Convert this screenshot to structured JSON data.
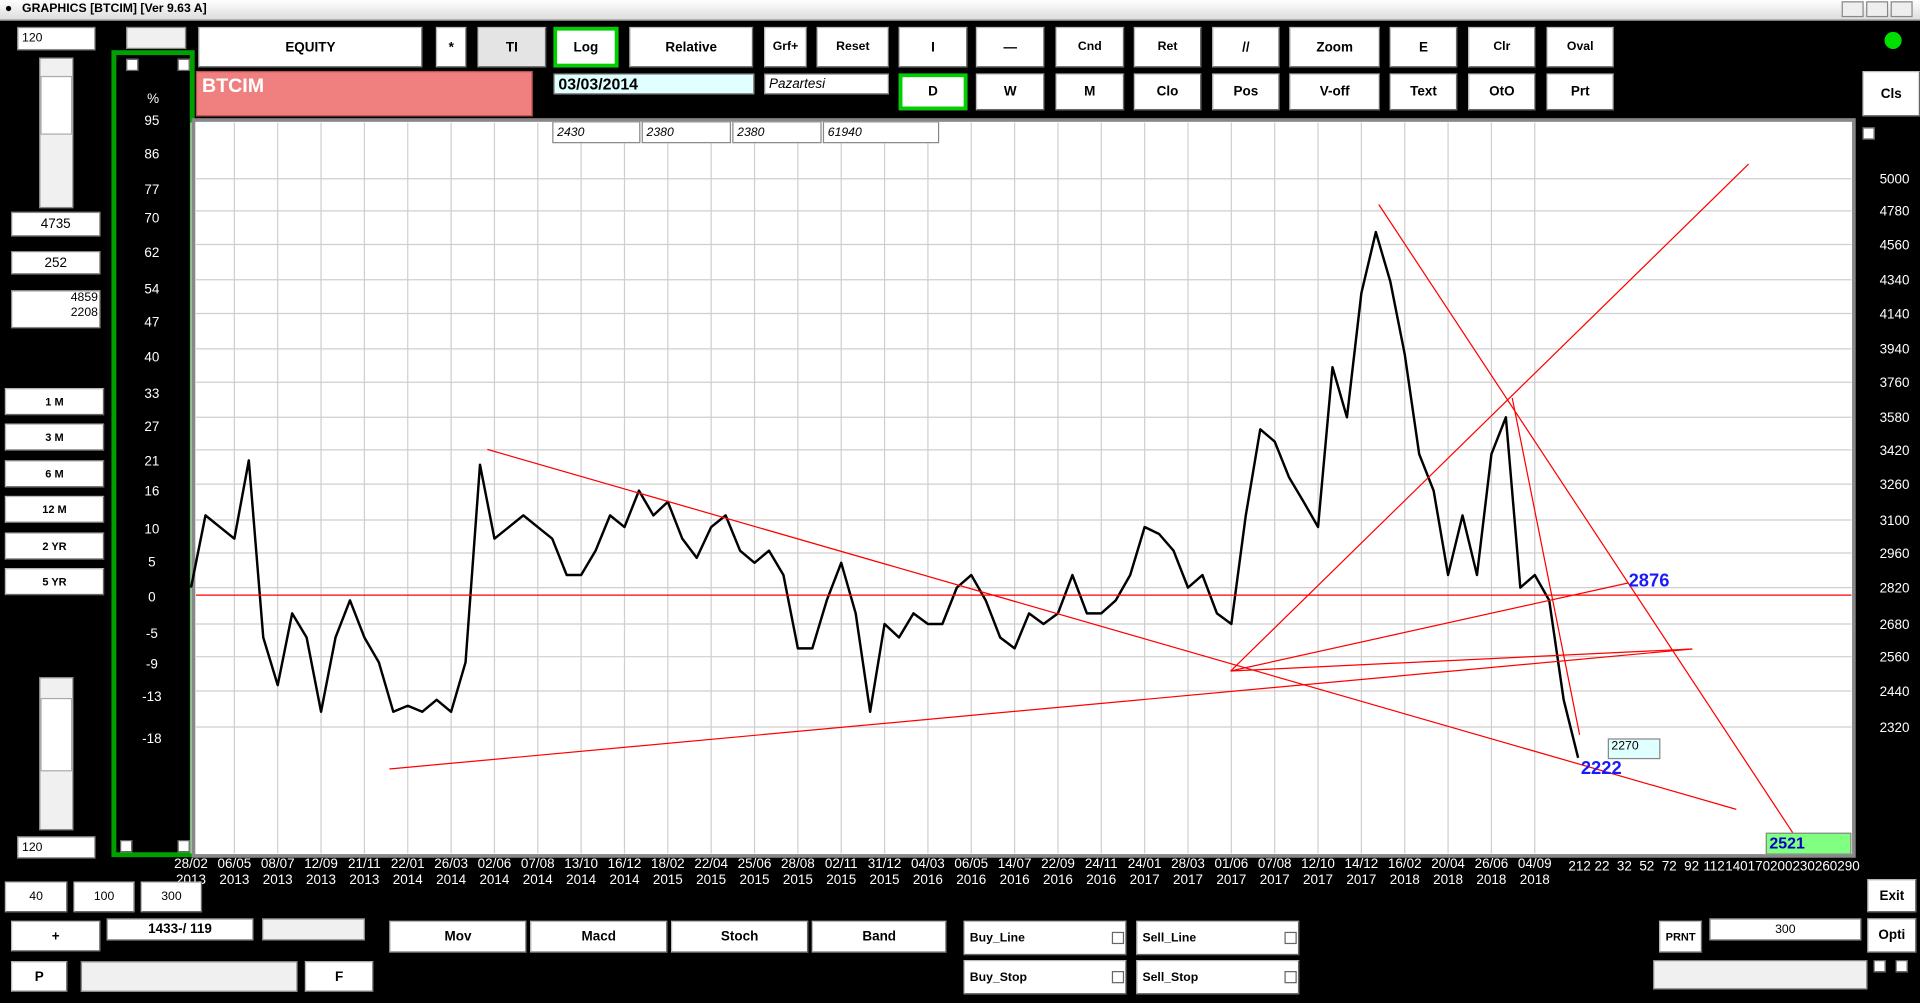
{
  "window": {
    "title": "GRAPHICS  [BTCIM] [Ver 9.63 A]"
  },
  "left_panel": {
    "bars_field": "120",
    "value1": "4735",
    "value2": "252",
    "range_high": "4859",
    "range_low": "2208",
    "periods": [
      "1 M",
      "3 M",
      "6 M",
      "12 M",
      "2 YR",
      "5 YR"
    ],
    "bottom_field": "120",
    "counts": [
      "40",
      "100",
      "300"
    ],
    "plus": "+",
    "position": "1433-/ 119",
    "prev": "P",
    "next": "F"
  },
  "toolbar": {
    "row1": [
      "EQUITY",
      "*",
      "TI",
      "Log",
      "Relative",
      "Grf+",
      "Reset",
      "I",
      "—",
      "Cnd",
      "Ret",
      "//",
      "Zoom",
      "E",
      "Clr",
      "Oval"
    ],
    "row2": [
      "D",
      "W",
      "M",
      "Clo",
      "Pos",
      "V-off",
      "Text",
      "OtO",
      "Prt"
    ],
    "close": "Cls"
  },
  "symbol": "BTCIM",
  "date": "03/03/2014",
  "weekday": "Pazartesi",
  "quote_fields": [
    "2430",
    "2380",
    "2380",
    "61940"
  ],
  "bottom": {
    "indicators": [
      "Mov",
      "Macd",
      "Stoch",
      "Band"
    ],
    "orders": [
      "Buy_Line",
      "Sell_Line",
      "Buy_Stop",
      "Sell_Stop"
    ],
    "print": "PRNT",
    "print_field": "300",
    "exit": "Exit",
    "options": "Opti"
  },
  "chart_data": {
    "type": "line",
    "color": "#000000",
    "y_scale": "log",
    "grid": true,
    "categories": [
      "28/02\n2013",
      null,
      null,
      "06/05\n2013",
      null,
      null,
      "08/07\n2013",
      null,
      null,
      "12/09\n2013",
      null,
      null,
      "21/11\n2013",
      null,
      null,
      "22/01\n2014",
      null,
      null,
      "26/03\n2014",
      null,
      null,
      "02/06\n2014",
      null,
      null,
      "07/08\n2014",
      null,
      null,
      "13/10\n2014",
      null,
      null,
      "16/12\n2014",
      null,
      null,
      "18/02\n2015",
      null,
      null,
      "22/04\n2015",
      null,
      null,
      "25/06\n2015",
      null,
      null,
      "28/08\n2015",
      null,
      null,
      "02/11\n2015",
      null,
      null,
      "31/12\n2015",
      null,
      null,
      "04/03\n2016",
      null,
      null,
      "06/05\n2016",
      null,
      null,
      "14/07\n2016",
      null,
      null,
      "22/09\n2016",
      null,
      null,
      "24/11\n2016",
      null,
      null,
      "24/01\n2017",
      null,
      null,
      "28/03\n2017",
      null,
      null,
      "01/06\n2017",
      null,
      null,
      "07/08\n2017",
      null,
      null,
      "12/10\n2017",
      null,
      null,
      "14/12\n2017",
      null,
      null,
      "16/02\n2018",
      null,
      null,
      "20/04\n2018",
      null,
      null,
      "26/06\n2018",
      null,
      null,
      "04/09\n2018",
      null,
      null,
      null
    ],
    "values": [
      2820,
      3120,
      3070,
      3020,
      3370,
      2630,
      2460,
      2720,
      2630,
      2370,
      2630,
      2770,
      2630,
      2540,
      2370,
      2390,
      2370,
      2410,
      2370,
      2540,
      3350,
      3020,
      3070,
      3120,
      3070,
      3020,
      2870,
      2870,
      2970,
      3120,
      3070,
      3230,
      3120,
      3180,
      3020,
      2940,
      3070,
      3120,
      2970,
      2920,
      2970,
      2870,
      2590,
      2590,
      2770,
      2920,
      2720,
      2370,
      2680,
      2630,
      2720,
      2680,
      2680,
      2820,
      2870,
      2770,
      2630,
      2590,
      2720,
      2680,
      2720,
      2870,
      2720,
      2720,
      2770,
      2870,
      3070,
      3040,
      2970,
      2820,
      2870,
      2720,
      2680,
      3120,
      3520,
      3460,
      3290,
      3180,
      3070,
      3840,
      3580,
      4260,
      4640,
      4330,
      3910,
      3400,
      3230,
      2870,
      3120,
      2870,
      3400,
      3580,
      2820,
      2870,
      2770,
      2410,
      2222
    ],
    "ylim": [
      1950,
      5410
    ],
    "yticks": [
      2320,
      2440,
      2560,
      2680,
      2820,
      2960,
      3100,
      3260,
      3420,
      3580,
      3760,
      3940,
      4140,
      4340,
      4560,
      4780,
      5000
    ],
    "y2_label": "%",
    "y2_scale": "log",
    "y2lim": [
      -30,
      97
    ],
    "y2ticks": [
      95,
      86,
      77,
      70,
      62,
      54,
      47,
      40,
      33,
      27,
      21,
      16,
      10,
      5,
      0,
      -5,
      -9,
      -13,
      -18
    ],
    "future_x_labels": [
      "212",
      "22",
      "32",
      "52",
      "72",
      "92",
      "112",
      "140",
      "170",
      "200",
      "230",
      "260",
      "290"
    ],
    "annotations": [
      {
        "text": "2876"
      },
      {
        "text": "2222"
      },
      {
        "text": "2270"
      },
      {
        "text": "2521"
      }
    ]
  }
}
